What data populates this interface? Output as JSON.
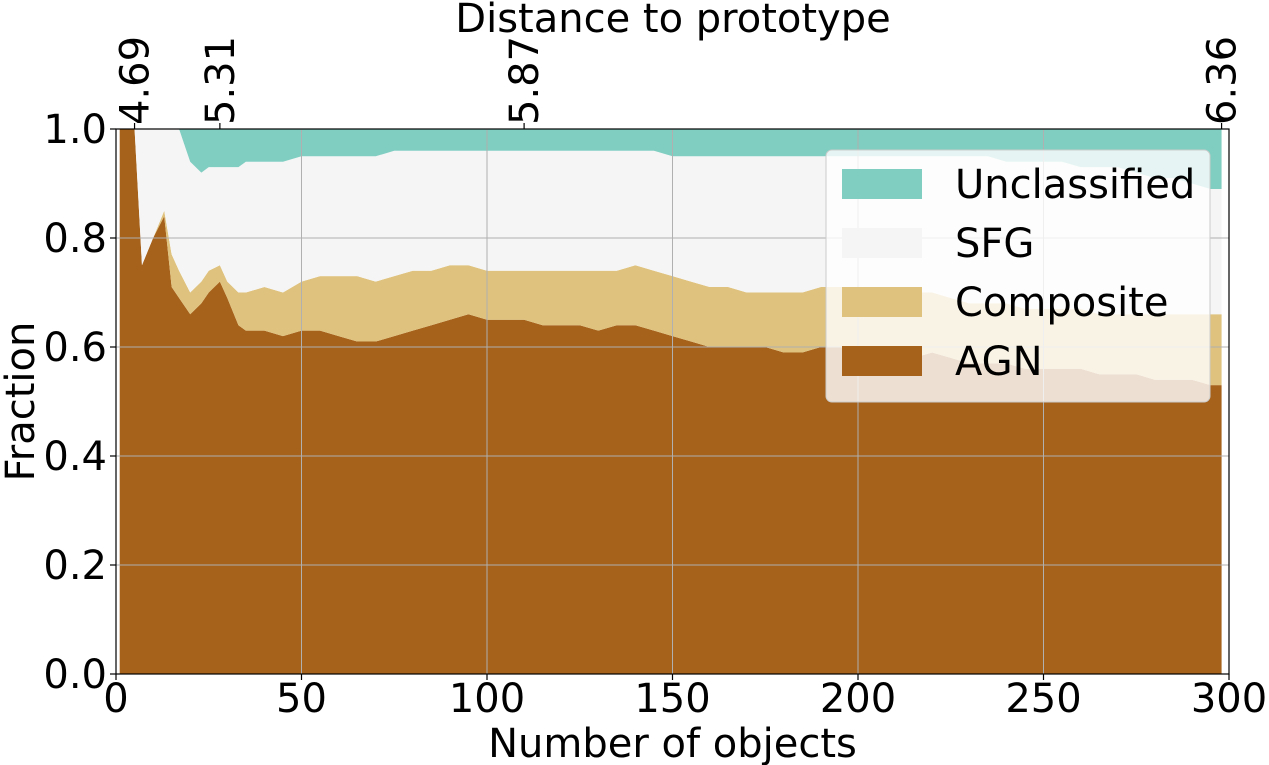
{
  "chart_data": {
    "type": "area",
    "stacked": true,
    "xlabel": "Number of objects",
    "ylabel": "Fraction",
    "top_xlabel": "Distance to prototype",
    "xlim": [
      0,
      300
    ],
    "ylim": [
      0.0,
      1.0
    ],
    "grid": true,
    "legend_position": "upper-right",
    "x_ticks": [
      0,
      50,
      100,
      150,
      200,
      250,
      300
    ],
    "x_tick_labels": [
      "0",
      "50",
      "100",
      "150",
      "200",
      "250",
      "300"
    ],
    "y_ticks": [
      0.0,
      0.2,
      0.4,
      0.6,
      0.8,
      1.0
    ],
    "y_tick_labels": [
      "0.0",
      "0.2",
      "0.4",
      "0.6",
      "0.8",
      "1.0"
    ],
    "top_ticks": [
      {
        "x": 5,
        "label": "4.69"
      },
      {
        "x": 28,
        "label": "5.31"
      },
      {
        "x": 110,
        "label": "5.87"
      },
      {
        "x": 298,
        "label": "6.36"
      }
    ],
    "x": [
      1,
      5,
      7,
      10,
      13,
      15,
      17,
      20,
      23,
      25,
      28,
      30,
      33,
      35,
      40,
      45,
      50,
      55,
      60,
      65,
      70,
      75,
      80,
      85,
      90,
      95,
      100,
      105,
      110,
      115,
      120,
      125,
      130,
      135,
      140,
      145,
      150,
      155,
      160,
      165,
      170,
      175,
      180,
      185,
      190,
      195,
      200,
      205,
      210,
      215,
      220,
      225,
      230,
      235,
      240,
      245,
      250,
      255,
      260,
      265,
      270,
      275,
      280,
      285,
      290,
      295,
      298
    ],
    "series": [
      {
        "name": "AGN",
        "color": "#a6611a",
        "values": [
          1.0,
          1.0,
          0.75,
          0.8,
          0.84,
          0.71,
          0.69,
          0.66,
          0.68,
          0.7,
          0.72,
          0.69,
          0.64,
          0.63,
          0.63,
          0.62,
          0.63,
          0.63,
          0.62,
          0.61,
          0.61,
          0.62,
          0.63,
          0.64,
          0.65,
          0.66,
          0.65,
          0.65,
          0.65,
          0.64,
          0.64,
          0.64,
          0.63,
          0.64,
          0.64,
          0.63,
          0.62,
          0.61,
          0.6,
          0.6,
          0.6,
          0.6,
          0.59,
          0.59,
          0.6,
          0.6,
          0.59,
          0.58,
          0.58,
          0.58,
          0.59,
          0.58,
          0.57,
          0.57,
          0.57,
          0.56,
          0.56,
          0.56,
          0.56,
          0.55,
          0.55,
          0.55,
          0.54,
          0.54,
          0.54,
          0.53,
          0.53
        ]
      },
      {
        "name": "Composite",
        "color": "#dfc27d",
        "values": [
          0.0,
          0.0,
          0.0,
          0.0,
          0.01,
          0.06,
          0.05,
          0.04,
          0.04,
          0.04,
          0.03,
          0.03,
          0.06,
          0.07,
          0.08,
          0.08,
          0.09,
          0.1,
          0.11,
          0.12,
          0.11,
          0.11,
          0.11,
          0.1,
          0.1,
          0.09,
          0.09,
          0.09,
          0.09,
          0.1,
          0.1,
          0.1,
          0.11,
          0.1,
          0.11,
          0.11,
          0.11,
          0.11,
          0.11,
          0.11,
          0.1,
          0.1,
          0.11,
          0.11,
          0.11,
          0.11,
          0.12,
          0.12,
          0.12,
          0.12,
          0.11,
          0.11,
          0.11,
          0.11,
          0.11,
          0.11,
          0.11,
          0.11,
          0.11,
          0.11,
          0.11,
          0.11,
          0.12,
          0.12,
          0.12,
          0.13,
          0.13
        ]
      },
      {
        "name": "SFG",
        "color": "#f5f5f5",
        "values": [
          0.0,
          0.0,
          0.25,
          0.2,
          0.15,
          0.23,
          0.26,
          0.24,
          0.2,
          0.19,
          0.18,
          0.21,
          0.23,
          0.24,
          0.23,
          0.24,
          0.23,
          0.22,
          0.22,
          0.22,
          0.23,
          0.23,
          0.22,
          0.22,
          0.21,
          0.21,
          0.22,
          0.22,
          0.22,
          0.22,
          0.22,
          0.22,
          0.22,
          0.22,
          0.21,
          0.22,
          0.22,
          0.23,
          0.24,
          0.24,
          0.25,
          0.25,
          0.25,
          0.25,
          0.24,
          0.24,
          0.24,
          0.25,
          0.25,
          0.25,
          0.25,
          0.26,
          0.27,
          0.27,
          0.26,
          0.27,
          0.27,
          0.27,
          0.26,
          0.27,
          0.27,
          0.26,
          0.25,
          0.25,
          0.24,
          0.23,
          0.23
        ]
      },
      {
        "name": "Unclassified",
        "color": "#80cdc1",
        "values": [
          0.0,
          0.0,
          0.0,
          0.0,
          0.0,
          0.0,
          0.0,
          0.06,
          0.08,
          0.07,
          0.07,
          0.07,
          0.07,
          0.06,
          0.06,
          0.06,
          0.05,
          0.05,
          0.05,
          0.05,
          0.05,
          0.04,
          0.04,
          0.04,
          0.04,
          0.04,
          0.04,
          0.04,
          0.04,
          0.04,
          0.04,
          0.04,
          0.04,
          0.04,
          0.04,
          0.04,
          0.05,
          0.05,
          0.05,
          0.05,
          0.05,
          0.05,
          0.05,
          0.05,
          0.05,
          0.05,
          0.05,
          0.05,
          0.05,
          0.05,
          0.05,
          0.05,
          0.05,
          0.05,
          0.06,
          0.06,
          0.06,
          0.06,
          0.07,
          0.07,
          0.07,
          0.08,
          0.09,
          0.09,
          0.1,
          0.11,
          0.11
        ]
      }
    ],
    "legend": [
      "Unclassified",
      "SFG",
      "Composite",
      "AGN"
    ]
  }
}
